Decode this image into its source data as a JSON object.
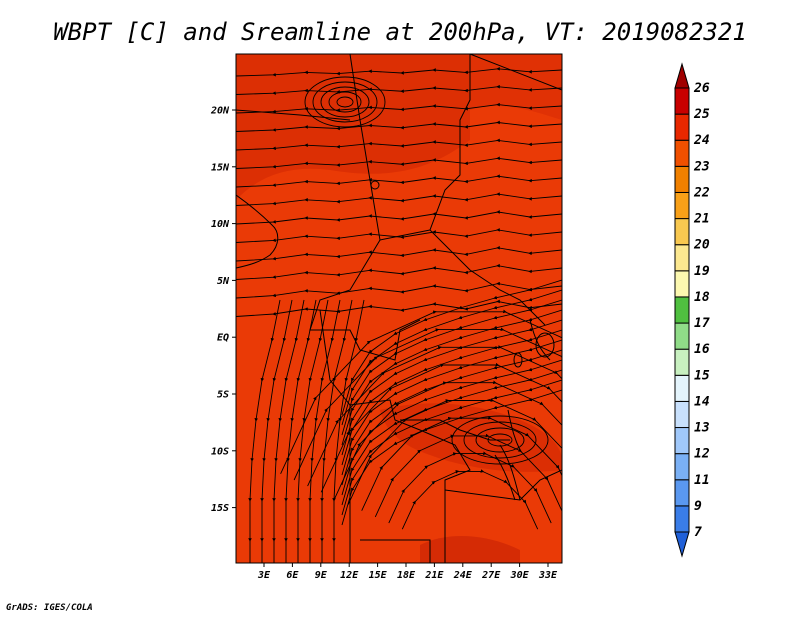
{
  "title": "WBPT [C] and Sreamline at 200hPa, VT: 2019082321",
  "footer": "GrADS: IGES/COLA",
  "map": {
    "lat_ticks": [
      "20N",
      "15N",
      "10N",
      "5N",
      "EQ",
      "5S",
      "10S",
      "15S"
    ],
    "lon_ticks": [
      "3E",
      "6E",
      "9E",
      "12E",
      "15E",
      "18E",
      "21E",
      "24E",
      "27E",
      "30E",
      "33E"
    ],
    "fill_color": "#ea3a06"
  },
  "colorbar": {
    "levels": [
      "7",
      "9",
      "11",
      "12",
      "13",
      "14",
      "15",
      "16",
      "17",
      "18",
      "19",
      "20",
      "21",
      "22",
      "23",
      "24",
      "25",
      "26"
    ],
    "colors": [
      "#2060d8",
      "#3a7de8",
      "#5a98f0",
      "#7ab0f5",
      "#a0c8fa",
      "#c8e0fc",
      "#e4f4fc",
      "#c8f0c0",
      "#90dc88",
      "#50c040",
      "#fcf8b0",
      "#fce890",
      "#f8c850",
      "#f8a018",
      "#f08000",
      "#f05000",
      "#e82800",
      "#c80000",
      "#a00000"
    ]
  }
}
